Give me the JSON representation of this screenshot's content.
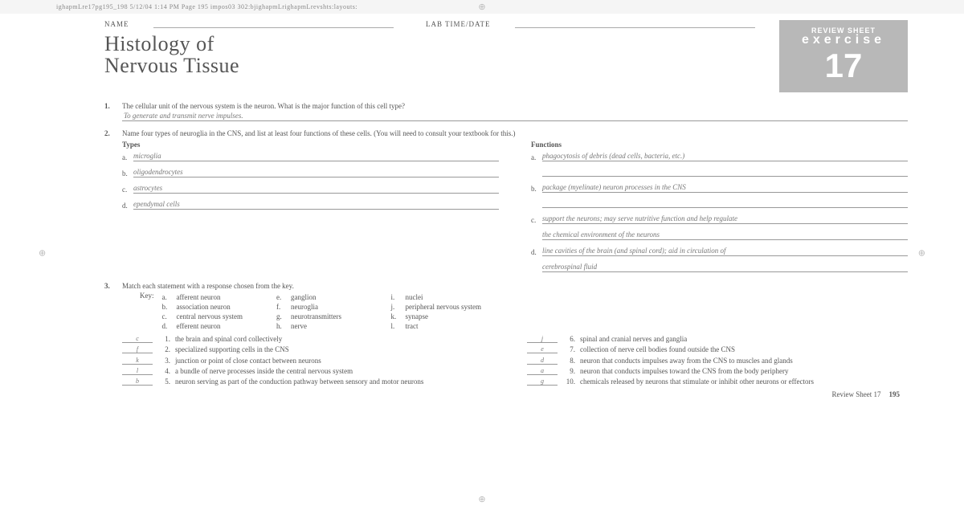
{
  "print_header": "ighapmLre17pg195_198 5/12/04 1:14 PM Page 195 impos03 302:bjighapmLrighapmLrevshts:layouts:",
  "fields": {
    "name_label": "NAME",
    "lab_label": "LAB TIME/DATE"
  },
  "title_line1": "Histology of",
  "title_line2": "Nervous Tissue",
  "review": {
    "sheet": "REVIEW SHEET",
    "exercise": "exercise",
    "number": "17"
  },
  "q1": {
    "num": "1.",
    "text": "The cellular unit of the nervous system is the neuron. What is the major function of this cell type?",
    "answer": "To generate and transmit nerve impulses."
  },
  "q2": {
    "num": "2.",
    "text": "Name four types of neuroglia in the CNS, and list at least four functions of these cells. (You will need to consult your textbook for this.)",
    "types_header": "Types",
    "funcs_header": "Functions",
    "types": [
      {
        "let": "a.",
        "val": "microglia"
      },
      {
        "let": "b.",
        "val": "oligodendrocytes"
      },
      {
        "let": "c.",
        "val": "astrocytes"
      },
      {
        "let": "d.",
        "val": "ependymal cells"
      }
    ],
    "funcs": [
      {
        "let": "a.",
        "val": "phagocytosis of debris (dead cells, bacteria, etc.)",
        "cont": ""
      },
      {
        "let": "b.",
        "val": "package (myelinate) neuron processes in the CNS",
        "cont": ""
      },
      {
        "let": "c.",
        "val": "support the neurons; may serve nutritive function and help regulate",
        "cont": "the chemical environment of the neurons"
      },
      {
        "let": "d.",
        "val": "line cavities of the brain (and spinal cord); aid in circulation of",
        "cont": "cerebrospinal fluid"
      }
    ]
  },
  "q3": {
    "num": "3.",
    "text": "Match each statement with a response chosen from the key.",
    "key_label": "Key:",
    "key": [
      {
        "l": "a.",
        "t": "afferent neuron"
      },
      {
        "l": "b.",
        "t": "association neuron"
      },
      {
        "l": "c.",
        "t": "central nervous system"
      },
      {
        "l": "d.",
        "t": "efferent neuron"
      },
      {
        "l": "e.",
        "t": "ganglion"
      },
      {
        "l": "f.",
        "t": "neuroglia"
      },
      {
        "l": "g.",
        "t": "neurotransmitters"
      },
      {
        "l": "h.",
        "t": "nerve"
      },
      {
        "l": "i.",
        "t": "nuclei"
      },
      {
        "l": "j.",
        "t": "peripheral nervous system"
      },
      {
        "l": "k.",
        "t": "synapse"
      },
      {
        "l": "l.",
        "t": "tract"
      }
    ],
    "left": [
      {
        "a": "c",
        "n": "1.",
        "t": "the brain and spinal cord collectively"
      },
      {
        "a": "f",
        "n": "2.",
        "t": "specialized supporting cells in the CNS"
      },
      {
        "a": "k",
        "n": "3.",
        "t": "junction or point of close contact between neurons"
      },
      {
        "a": "l",
        "n": "4.",
        "t": "a bundle of nerve processes inside the central nervous system"
      },
      {
        "a": "b",
        "n": "5.",
        "t": "neuron serving as part of the conduction pathway between sensory and motor neurons"
      }
    ],
    "right": [
      {
        "a": "j",
        "n": "6.",
        "t": "spinal and cranial nerves and ganglia"
      },
      {
        "a": "e",
        "n": "7.",
        "t": "collection of nerve cell bodies found outside the CNS"
      },
      {
        "a": "d",
        "n": "8.",
        "t": "neuron that conducts impulses away from the CNS to muscles and glands"
      },
      {
        "a": "a",
        "n": "9.",
        "t": "neuron that conducts impulses toward the CNS from the body periphery"
      },
      {
        "a": "g",
        "n": "10.",
        "t": "chemicals released by neurons that stimulate or inhibit other neurons or effectors"
      }
    ]
  },
  "footer": {
    "label": "Review Sheet 17",
    "page": "195"
  }
}
